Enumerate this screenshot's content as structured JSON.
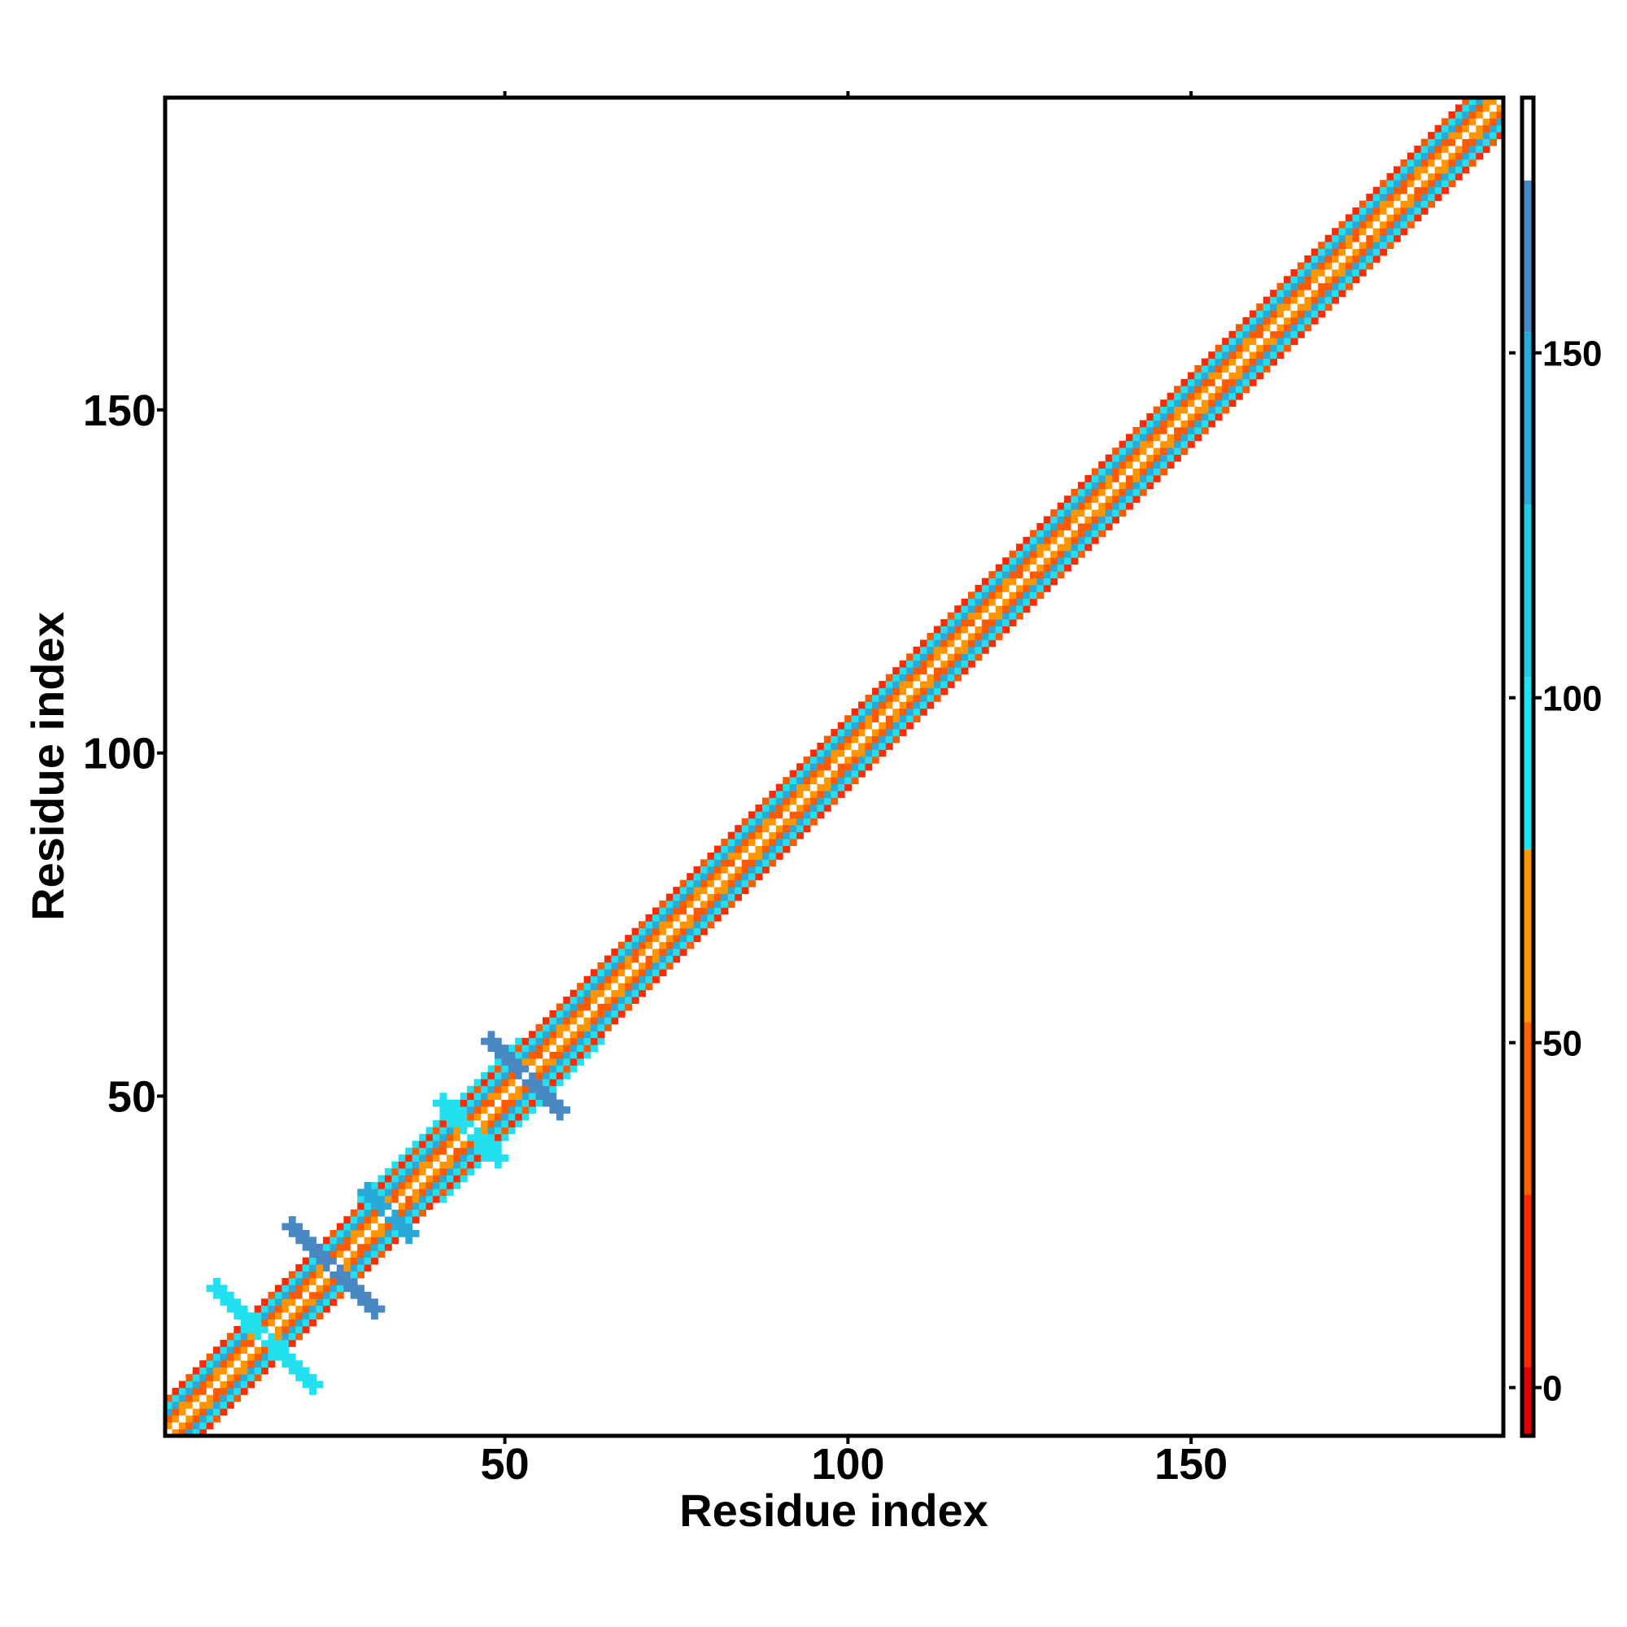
{
  "chart_data": {
    "type": "heatmap",
    "title": "",
    "xlabel": "Residue index",
    "ylabel": "Residue index",
    "xlim": [
      1,
      195
    ],
    "ylim": [
      1,
      195
    ],
    "x_ticks": [
      50,
      100,
      150
    ],
    "y_ticks": [
      50,
      100,
      150
    ],
    "colorbar": {
      "range": [
        -7,
        187
      ],
      "ticks": [
        0,
        50,
        100,
        150
      ],
      "bands": [
        {
          "from": -7,
          "to": 3,
          "color": "#e00000"
        },
        {
          "from": 3,
          "to": 28,
          "color": "#ff2a00"
        },
        {
          "from": 28,
          "to": 53,
          "color": "#ff6000"
        },
        {
          "from": 53,
          "to": 78,
          "color": "#ff9500"
        },
        {
          "from": 78,
          "to": 103,
          "color": "#22e0f0"
        },
        {
          "from": 103,
          "to": 128,
          "color": "#22cce6"
        },
        {
          "from": 128,
          "to": 153,
          "color": "#2aa9d8"
        },
        {
          "from": 153,
          "to": 175,
          "color": "#4a88c4"
        },
        {
          "from": 175,
          "to": 187,
          "color": "#ffffff"
        }
      ]
    },
    "pattern": {
      "diagonal_band_offsets": [
        {
          "offset": 0,
          "color": "#ffffff"
        },
        {
          "offset": 1,
          "color": "#ff9500"
        },
        {
          "offset": 2,
          "color": "#ff5a00"
        },
        {
          "offset": 3,
          "color": "#2aa9d8"
        },
        {
          "offset": 4,
          "color": "#22e0f0"
        },
        {
          "offset": 5,
          "color": "#ff2a00"
        }
      ],
      "contact_regions": [
        {
          "center": [
            15,
            15
          ],
          "arm_length": 7,
          "color": "#22e0f0"
        },
        {
          "center": [
            25,
            25
          ],
          "arm_length": 6,
          "color": "#4a88c4"
        },
        {
          "center": [
            33,
            33
          ],
          "arm_length": 3,
          "color": "#2aa9d8"
        },
        {
          "center": [
            45,
            45
          ],
          "arm_length": 4,
          "color": "#22e0f0"
        },
        {
          "center": [
            53,
            53
          ],
          "arm_length": 5,
          "color": "#4a88c4"
        }
      ],
      "wide_band_segments": [
        {
          "from": 35,
          "to": 58,
          "half_width": 6
        }
      ]
    }
  }
}
